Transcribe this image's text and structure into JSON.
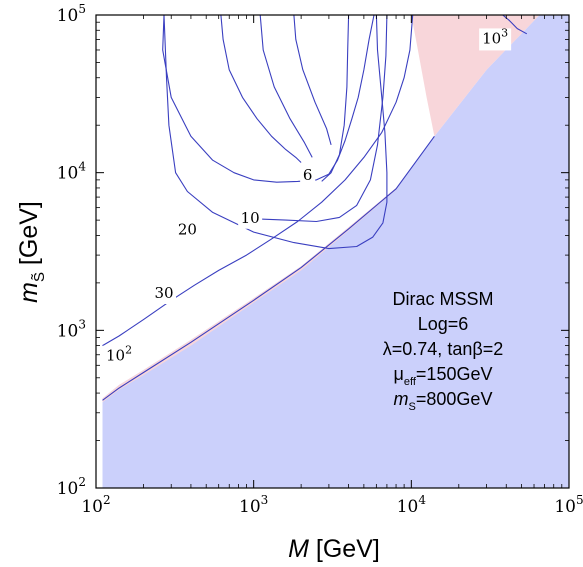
{
  "chart_data": {
    "type": "contour",
    "xlabel": "M [GeV]",
    "ylabel": "m_S̃ [GeV]",
    "x_scale": "log",
    "y_scale": "log",
    "xlim": [
      100,
      100000
    ],
    "ylim": [
      100,
      100000
    ],
    "x_ticks": [
      {
        "base": "10",
        "exp": "2"
      },
      {
        "base": "10",
        "exp": "3"
      },
      {
        "base": "10",
        "exp": "4"
      },
      {
        "base": "10",
        "exp": "5"
      }
    ],
    "y_ticks": [
      {
        "base": "10",
        "exp": "2"
      },
      {
        "base": "10",
        "exp": "3"
      },
      {
        "base": "10",
        "exp": "4"
      },
      {
        "base": "10",
        "exp": "5"
      }
    ],
    "regions": [
      {
        "name": "excluded-blue",
        "color": "#cbd0fb",
        "boundary": [
          [
            110,
            100
          ],
          [
            110,
            370
          ],
          [
            140,
            450
          ],
          [
            200,
            560
          ],
          [
            400,
            870
          ],
          [
            1000,
            1600
          ],
          [
            2000,
            2550
          ],
          [
            4000,
            4500
          ],
          [
            8000,
            8000
          ],
          [
            14000,
            17000
          ],
          [
            30000,
            45000
          ],
          [
            65000,
            100000
          ],
          [
            100000,
            100000
          ],
          [
            100000,
            100
          ]
        ]
      },
      {
        "name": "pink-band-lower",
        "color": "#f8d6da",
        "boundary": [
          [
            110,
            350
          ],
          [
            140,
            420
          ],
          [
            200,
            520
          ],
          [
            400,
            800
          ],
          [
            1000,
            1500
          ],
          [
            2000,
            2400
          ],
          [
            4000,
            4300
          ],
          [
            8000,
            7800
          ],
          [
            14000,
            17000
          ],
          [
            8000,
            8000
          ],
          [
            4000,
            4500
          ],
          [
            2000,
            2550
          ],
          [
            1000,
            1600
          ],
          [
            400,
            870
          ],
          [
            200,
            560
          ],
          [
            140,
            450
          ],
          [
            110,
            370
          ]
        ]
      },
      {
        "name": "pink-region-upper-right",
        "color": "#f8d6da",
        "boundary": [
          [
            14000,
            17000
          ],
          [
            12500,
            30000
          ],
          [
            11000,
            60000
          ],
          [
            10000,
            100000
          ],
          [
            65000,
            100000
          ],
          [
            30000,
            45000
          ]
        ]
      }
    ],
    "contours": [
      {
        "label": "6",
        "label_at": [
          2200,
          9500
        ],
        "points": [
          [
            270,
            100000
          ],
          [
            265,
            60000
          ],
          [
            300,
            30000
          ],
          [
            400,
            17000
          ],
          [
            550,
            12000
          ],
          [
            750,
            10000
          ],
          [
            1000,
            9000
          ],
          [
            1400,
            8700
          ],
          [
            1900,
            8800
          ],
          [
            2500,
            9000
          ],
          [
            3000,
            9800
          ],
          [
            3400,
            12000
          ],
          [
            3800,
            16000
          ],
          [
            4200,
            22000
          ],
          [
            4600,
            30000
          ],
          [
            5000,
            45000
          ],
          [
            5400,
            70000
          ],
          [
            5800,
            100000
          ]
        ]
      },
      {
        "label": "6",
        "points": [
          [
            620,
            100000
          ],
          [
            640,
            70000
          ],
          [
            700,
            45000
          ],
          [
            850,
            30000
          ],
          [
            1050,
            22000
          ],
          [
            1300,
            17000
          ],
          [
            1600,
            14000
          ],
          [
            1850,
            12500
          ],
          [
            2000,
            11600
          ]
        ]
      },
      {
        "label": "6",
        "points": [
          [
            1100,
            100000
          ],
          [
            1150,
            60000
          ],
          [
            1350,
            35000
          ],
          [
            1700,
            22000
          ],
          [
            2100,
            15500
          ],
          [
            2350,
            12500
          ]
        ]
      },
      {
        "label": "6",
        "points": [
          [
            1800,
            100000
          ],
          [
            1850,
            70000
          ],
          [
            2050,
            45000
          ],
          [
            2450,
            28000
          ],
          [
            2900,
            19000
          ],
          [
            3100,
            15000
          ]
        ]
      },
      {
        "label": "10",
        "label_at": [
          950,
          5100
        ],
        "points": [
          [
            7000,
            100000
          ],
          [
            6900,
            55000
          ],
          [
            6600,
            30000
          ],
          [
            6100,
            15000
          ],
          [
            5500,
            9000
          ],
          [
            4500,
            6200
          ],
          [
            3500,
            5200
          ],
          [
            2500,
            4900
          ],
          [
            1600,
            5000
          ],
          [
            1000,
            5100
          ]
        ]
      },
      {
        "label": "10",
        "points": [
          [
            4000,
            100000
          ],
          [
            3950,
            60000
          ],
          [
            3900,
            35000
          ],
          [
            3750,
            20000
          ],
          [
            3500,
            13000
          ],
          [
            3100,
            10000
          ],
          [
            2700,
            8800
          ]
        ]
      },
      {
        "label": "20",
        "label_at": [
          380,
          4300
        ],
        "points": [
          [
            6000,
            100000
          ],
          [
            6100,
            60000
          ],
          [
            6500,
            30000
          ],
          [
            6800,
            18000
          ],
          [
            7000,
            10000
          ],
          [
            7000,
            6500
          ],
          [
            6600,
            4800
          ],
          [
            5700,
            3900
          ],
          [
            4500,
            3400
          ],
          [
            3000,
            3300
          ],
          [
            1800,
            3600
          ],
          [
            1000,
            4200
          ],
          [
            550,
            5600
          ],
          [
            380,
            7600
          ],
          [
            320,
            10000
          ],
          [
            290,
            20000
          ],
          [
            280,
            40000
          ],
          [
            270,
            100000
          ]
        ]
      },
      {
        "label": "30",
        "label_at": [
          270,
          1700
        ],
        "points": [
          [
            110,
            800
          ],
          [
            140,
            920
          ],
          [
            200,
            1170
          ],
          [
            300,
            1550
          ],
          [
            420,
            1930
          ],
          [
            600,
            2400
          ],
          [
            900,
            3000
          ],
          [
            1300,
            3800
          ],
          [
            1900,
            4900
          ],
          [
            2700,
            6500
          ],
          [
            3800,
            9000
          ],
          [
            5000,
            12500
          ],
          [
            6500,
            18000
          ],
          [
            8000,
            28000
          ],
          [
            9000,
            40000
          ],
          [
            9800,
            60000
          ],
          [
            10200,
            100000
          ]
        ]
      },
      {
        "label": "10²",
        "label_at": [
          140,
          680
        ],
        "points": [
          [
            110,
            360
          ],
          [
            140,
            430
          ],
          [
            200,
            540
          ],
          [
            400,
            840
          ],
          [
            1000,
            1550
          ],
          [
            2000,
            2500
          ],
          [
            4000,
            4400
          ],
          [
            8000,
            7900
          ],
          [
            14000,
            17000
          ]
        ]
      },
      {
        "label": "10³",
        "label_at": [
          34000,
          70000
        ],
        "points": [
          [
            38000,
            100000
          ],
          [
            42000,
            92000
          ],
          [
            47000,
            82000
          ],
          [
            54000,
            76000
          ]
        ]
      }
    ],
    "annotation_lines": [
      {
        "text": "Dirac MSSM"
      },
      {
        "text": "Log=6"
      },
      {
        "text": "λ=0.74, tanβ=2"
      },
      {
        "base": "μ",
        "sub": "eff",
        "rest": "=150GeV"
      },
      {
        "base": "m",
        "sub": "S",
        "rest": "=800GeV"
      }
    ],
    "colors": {
      "contour": "#3a3fc0",
      "blue_region": "#cbd0fb",
      "pink_region": "#f8d6da",
      "frame": "#000000"
    }
  }
}
